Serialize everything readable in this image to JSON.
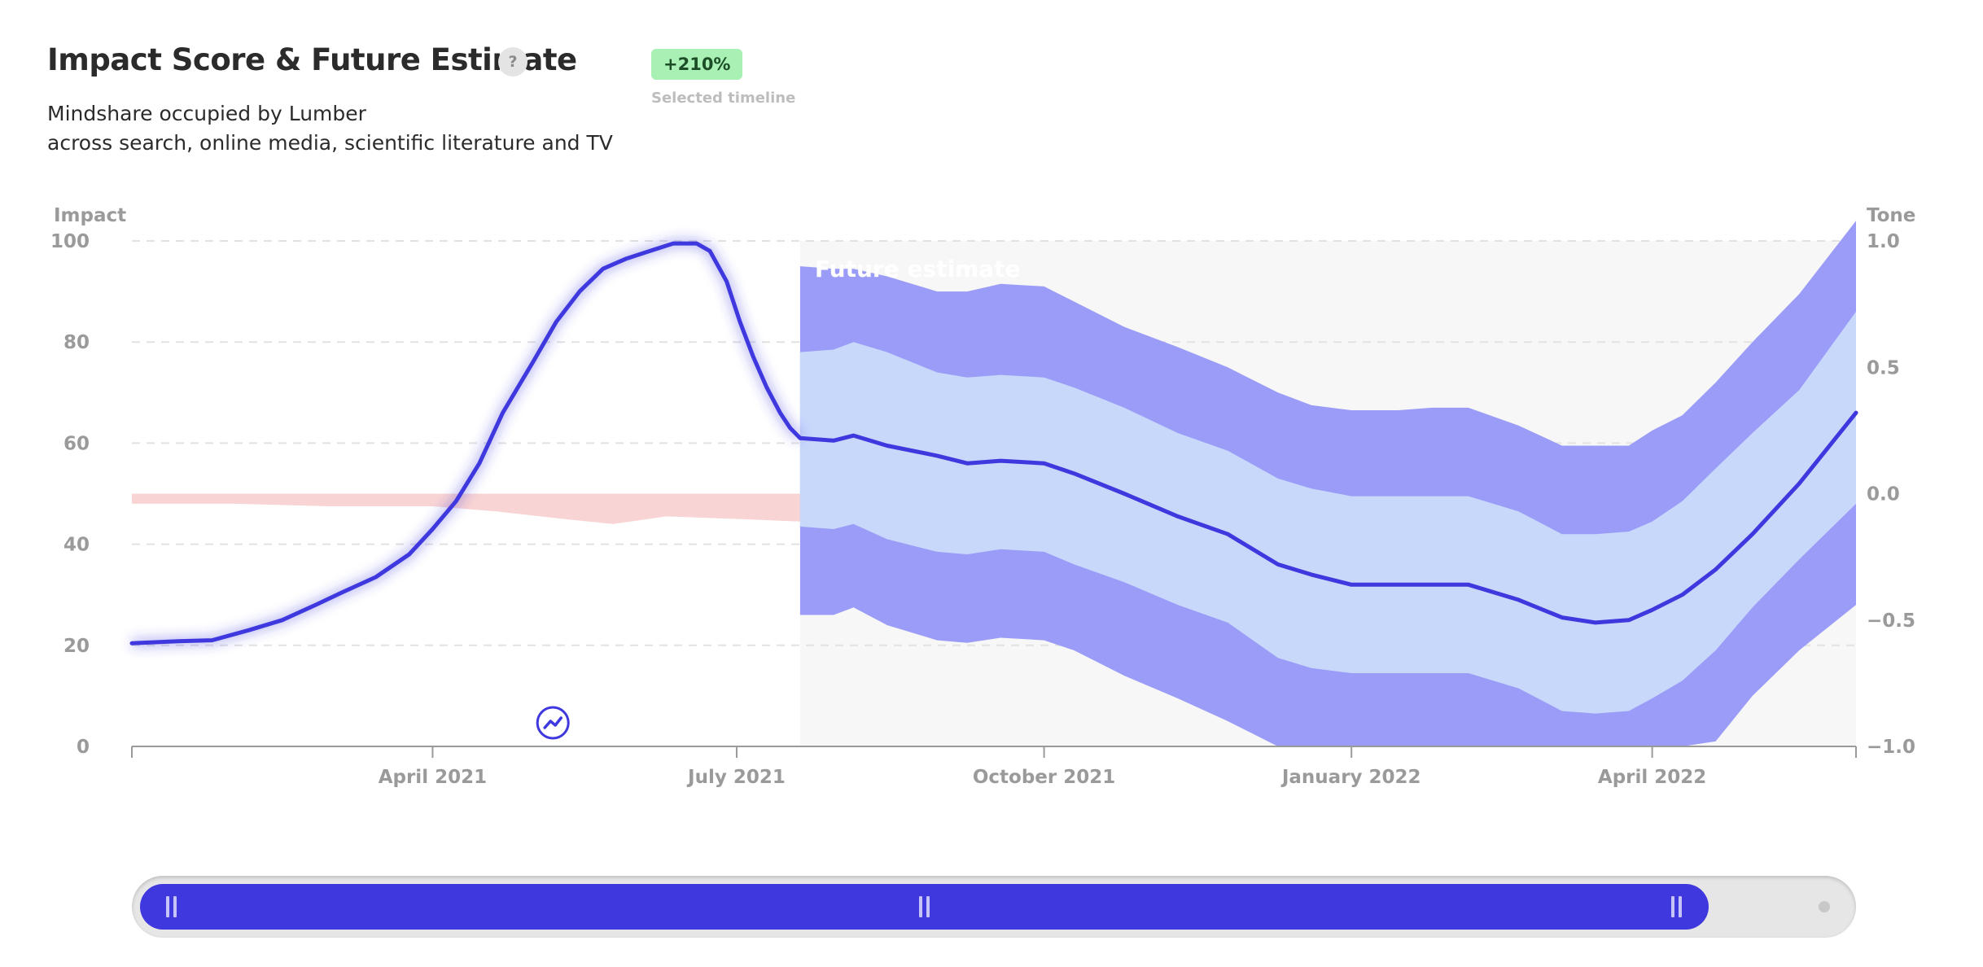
{
  "header": {
    "title": "Impact Score & Future Estimate",
    "help_label": "?",
    "subtitle_line1": "Mindshare occupied by Lumber",
    "subtitle_line2": "across search, online media, scientific literature and TV",
    "badge": "+210%",
    "badge_caption": "Selected timeline"
  },
  "colors": {
    "impact_line": "#3f38de",
    "outer_band": "#9a9cf7",
    "inner_band": "#c8d8fb",
    "tone_band": "#f9d4d4",
    "future_bg": "#f7f7f7",
    "badge_bg": "#a8f0b4",
    "slider": "#3f38de"
  },
  "icons": {
    "trend_marker": "trend-up-circle-icon",
    "help": "question-icon"
  },
  "chart_data": {
    "type": "line",
    "left_axis_label": "Impact",
    "right_axis_label": "Tone",
    "future_label": "Future estimate",
    "left_ticks": [
      "0",
      "20",
      "40",
      "60",
      "80",
      "100"
    ],
    "right_ticks": [
      "1.0",
      "0.5",
      "0.0",
      "−0.5",
      "−1.0"
    ],
    "x_tick_labels": [
      "April 2021",
      "July 2021",
      "October 2021",
      "January 2022",
      "April 2022"
    ],
    "x_tick_dates": [
      "2021-04-01",
      "2021-07-01",
      "2021-10-01",
      "2022-01-01",
      "2022-04-01"
    ],
    "x_range": [
      "2021-01-01",
      "2022-06-01"
    ],
    "ylim_left": [
      0,
      100
    ],
    "ylim_right": [
      -1,
      1
    ],
    "grid": true,
    "future_start": "2021-07-20",
    "series": [
      {
        "kind": "historical",
        "dates": [
          "2021-01-01",
          "2021-01-15",
          "2021-01-25",
          "2021-02-05",
          "2021-02-15",
          "2021-02-25",
          "2021-03-05",
          "2021-03-15",
          "2021-03-25",
          "2021-04-01",
          "2021-04-08",
          "2021-04-15",
          "2021-04-22",
          "2021-05-01",
          "2021-05-08",
          "2021-05-15",
          "2021-05-22",
          "2021-05-29",
          "2021-06-05",
          "2021-06-12",
          "2021-06-19",
          "2021-06-23",
          "2021-06-28",
          "2021-07-02",
          "2021-07-06",
          "2021-07-10",
          "2021-07-14",
          "2021-07-17",
          "2021-07-20"
        ],
        "values": [
          20.4,
          20.8,
          21.0,
          23.0,
          25.0,
          28.0,
          30.5,
          33.5,
          38.0,
          43.0,
          48.5,
          56.0,
          66.0,
          76.0,
          84.0,
          90.0,
          94.5,
          96.5,
          98.0,
          99.5,
          99.5,
          98.0,
          92.0,
          84.0,
          77.0,
          71.0,
          66.0,
          63.0,
          61.0
        ]
      },
      {
        "kind": "forecast",
        "dates": [
          "2021-07-20",
          "2021-07-30",
          "2021-08-05",
          "2021-08-15",
          "2021-08-30",
          "2021-09-08",
          "2021-09-18",
          "2021-10-01",
          "2021-10-10",
          "2021-10-25",
          "2021-11-10",
          "2021-11-25",
          "2021-12-10",
          "2021-12-20",
          "2022-01-01",
          "2022-01-15",
          "2022-01-25",
          "2022-02-05",
          "2022-02-20",
          "2022-03-05",
          "2022-03-15",
          "2022-03-25",
          "2022-04-01",
          "2022-04-10",
          "2022-04-20",
          "2022-05-01",
          "2022-05-15",
          "2022-06-01"
        ],
        "values": [
          61.0,
          60.5,
          61.5,
          59.5,
          57.5,
          56.0,
          56.5,
          56.0,
          54.0,
          50.0,
          45.5,
          42.0,
          36.0,
          34.0,
          32.0,
          32.0,
          32.0,
          32.0,
          29.0,
          25.5,
          24.5,
          25.0,
          27.0,
          30.0,
          35.0,
          42.0,
          52.0,
          66.0
        ],
        "inner_upper": [
          78.0,
          78.5,
          80.0,
          78.0,
          74.0,
          73.0,
          73.5,
          73.0,
          71.0,
          67.0,
          62.0,
          58.5,
          53.0,
          51.0,
          49.5,
          49.5,
          49.5,
          49.5,
          46.5,
          42.0,
          42.0,
          42.5,
          44.5,
          48.5,
          55.0,
          62.0,
          70.5,
          86.0
        ],
        "inner_lower": [
          43.5,
          43.0,
          44.0,
          41.0,
          38.5,
          38.0,
          39.0,
          38.5,
          36.0,
          32.5,
          28.0,
          24.5,
          17.5,
          15.5,
          14.5,
          14.5,
          14.5,
          14.5,
          11.5,
          7.0,
          6.5,
          7.0,
          9.5,
          13.0,
          19.0,
          27.5,
          37.0,
          48.0
        ],
        "outer_upper": [
          95.0,
          94.5,
          94.5,
          93.0,
          90.0,
          90.0,
          91.5,
          91.0,
          88.0,
          83.0,
          79.0,
          75.0,
          70.0,
          67.5,
          66.5,
          66.5,
          67.0,
          67.0,
          63.5,
          59.5,
          59.5,
          59.5,
          62.5,
          65.5,
          72.0,
          80.0,
          89.5,
          104.0
        ],
        "outer_lower": [
          26.0,
          26.0,
          27.5,
          24.0,
          21.0,
          20.5,
          21.5,
          21.0,
          19.0,
          14.0,
          9.5,
          5.0,
          -2.0,
          -5.0,
          -7.0,
          -8.0,
          -8.0,
          -8.0,
          -10.0,
          -13.0,
          -13.5,
          -13.0,
          -10.0,
          -5.5,
          1.0,
          10.0,
          19.0,
          28.0
        ]
      },
      {
        "kind": "tone",
        "dates": [
          "2021-01-01",
          "2021-02-01",
          "2021-03-01",
          "2021-04-01",
          "2021-04-20",
          "2021-05-10",
          "2021-05-25",
          "2021-06-10",
          "2021-07-01",
          "2021-07-20"
        ],
        "upper": [
          0.0,
          0.0,
          0.0,
          0.0,
          0.0,
          0.0,
          0.0,
          0.0,
          0.0,
          0.0
        ],
        "lower": [
          -0.04,
          -0.04,
          -0.05,
          -0.05,
          -0.07,
          -0.1,
          -0.12,
          -0.09,
          -0.1,
          -0.11
        ]
      }
    ]
  },
  "slider": {
    "min": "2021-01-01",
    "max": "2022-06-01",
    "start": "2021-01-01",
    "end": "2022-04-20"
  }
}
